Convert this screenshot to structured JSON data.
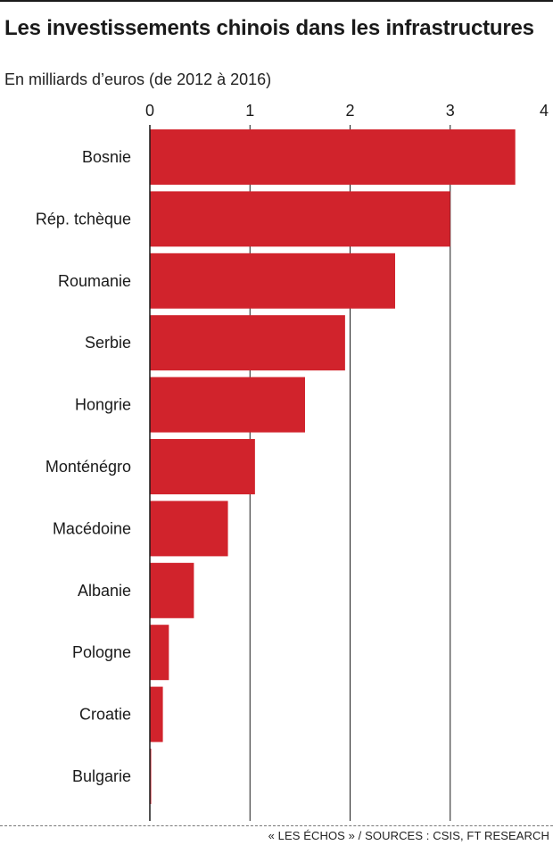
{
  "title": "Les investissements chinois dans les infrastructures",
  "subtitle": "En milliards d’euros (de 2012 à 2016)",
  "source": "« LES ÉCHOS » / SOURCES : CSIS, FT RESEARCH",
  "colors": {
    "bar": "#d1232c",
    "grid": "#1a1a1a",
    "text": "#1a1a1a"
  },
  "chart_data": {
    "type": "bar",
    "orientation": "horizontal",
    "categories": [
      "Bosnie",
      "Rép. tchèque",
      "Roumanie",
      "Serbie",
      "Hongrie",
      "Monténégro",
      "Macédoine",
      "Albanie",
      "Pologne",
      "Croatie",
      "Bulgarie"
    ],
    "values": [
      3.65,
      3.0,
      2.45,
      1.95,
      1.55,
      1.05,
      0.78,
      0.44,
      0.19,
      0.13,
      0.01
    ],
    "xlim": [
      0,
      4
    ],
    "xticks": [
      "0",
      "1",
      "2",
      "3",
      "4"
    ],
    "tick_position": "top",
    "grid": true,
    "legend": "none"
  }
}
